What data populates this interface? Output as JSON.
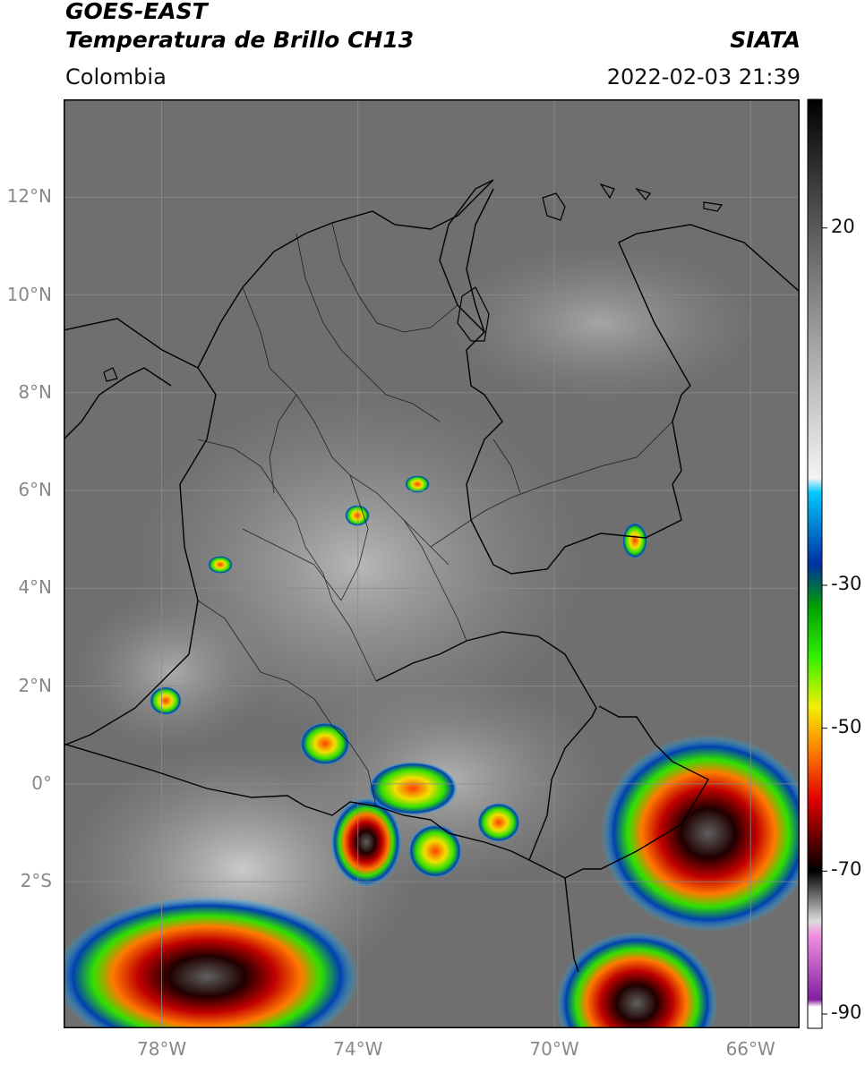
{
  "header": {
    "satellite": "GOES-EAST",
    "product": "Temperatura de Brillo CH13",
    "region": "Colombia",
    "source": "SIATA",
    "timestamp": "2022-02-03 21:39"
  },
  "map": {
    "extent": {
      "lon_min": -80,
      "lon_max": -65,
      "lat_min": -5,
      "lat_max": 14
    },
    "lat_ticks": [
      {
        "lat": 12,
        "label": "12°N"
      },
      {
        "lat": 10,
        "label": "10°N"
      },
      {
        "lat": 8,
        "label": "8°N"
      },
      {
        "lat": 6,
        "label": "6°N"
      },
      {
        "lat": 4,
        "label": "4°N"
      },
      {
        "lat": 2,
        "label": "2°N"
      },
      {
        "lat": 0,
        "label": "0°"
      },
      {
        "lat": -2,
        "label": "2°S"
      }
    ],
    "lon_ticks": [
      {
        "lon": -78,
        "label": "78°W"
      },
      {
        "lon": -74,
        "label": "74°W"
      },
      {
        "lon": -70,
        "label": "70°W"
      },
      {
        "lon": -66,
        "label": "66°W"
      }
    ],
    "colors": {
      "background": "#6f6f6f",
      "border": "#000000",
      "grid": "#8c8c8c"
    }
  },
  "colorbar": {
    "ticks": [
      {
        "value": 20,
        "label": "20"
      },
      {
        "value": -30,
        "label": "-30"
      },
      {
        "value": -50,
        "label": "-50"
      },
      {
        "value": -70,
        "label": "-70"
      },
      {
        "value": -90,
        "label": "-90"
      }
    ],
    "range": [
      -92,
      38
    ],
    "stops": [
      {
        "value": 38,
        "color": "#000000"
      },
      {
        "value": 20,
        "color": "#5a5a5a"
      },
      {
        "value": 0,
        "color": "#b4b4b4"
      },
      {
        "value": -15,
        "color": "#f4f4f4"
      },
      {
        "value": -17,
        "color": "#00c8ff"
      },
      {
        "value": -27,
        "color": "#0030a0"
      },
      {
        "value": -33,
        "color": "#00a000"
      },
      {
        "value": -40,
        "color": "#30f000"
      },
      {
        "value": -47,
        "color": "#f0f000"
      },
      {
        "value": -53,
        "color": "#ff8000"
      },
      {
        "value": -60,
        "color": "#e00000"
      },
      {
        "value": -67,
        "color": "#400000"
      },
      {
        "value": -70,
        "color": "#000000"
      },
      {
        "value": -77,
        "color": "#dcdcdc"
      },
      {
        "value": -79,
        "color": "#f090e0"
      },
      {
        "value": -88,
        "color": "#8020a0"
      },
      {
        "value": -89,
        "color": "#ffffff"
      }
    ]
  }
}
